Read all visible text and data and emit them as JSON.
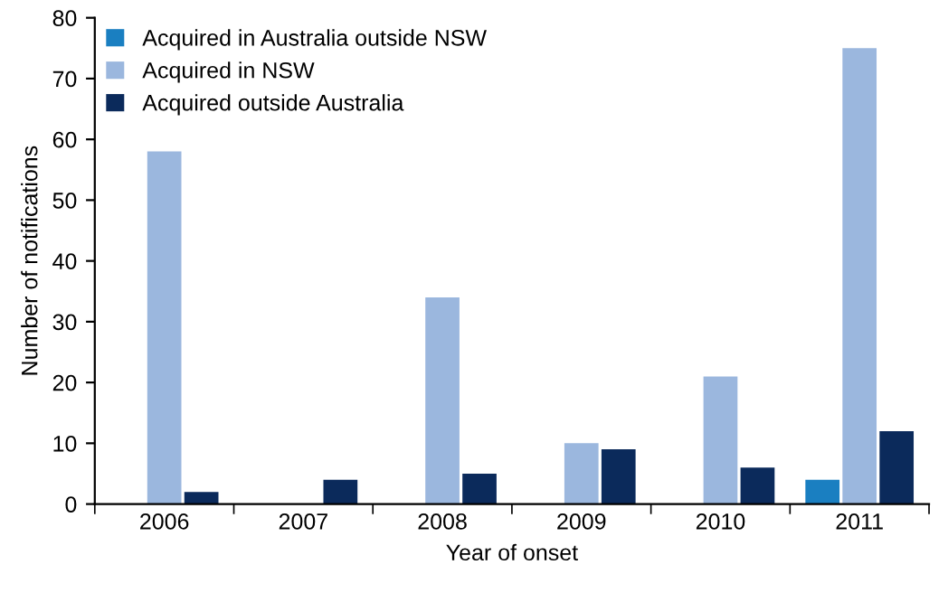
{
  "chart_data": {
    "type": "bar",
    "xlabel": "Year of onset",
    "ylabel": "Number of notifications",
    "categories": [
      "2006",
      "2007",
      "2008",
      "2009",
      "2010",
      "2011"
    ],
    "series": [
      {
        "name": "Acquired in Australia outside NSW",
        "color": "#1a7fc1",
        "values": [
          0,
          0,
          0,
          0,
          0,
          4
        ]
      },
      {
        "name": "Acquired in NSW",
        "color": "#9bb7de",
        "values": [
          58,
          0,
          34,
          10,
          21,
          75
        ]
      },
      {
        "name": "Acquired outside Australia",
        "color": "#0b2a5b",
        "values": [
          2,
          4,
          5,
          9,
          6,
          12
        ]
      }
    ],
    "ylim": [
      0,
      80
    ],
    "yticks": [
      0,
      10,
      20,
      30,
      40,
      50,
      60,
      70,
      80
    ],
    "grid": false,
    "legend": "top left"
  }
}
